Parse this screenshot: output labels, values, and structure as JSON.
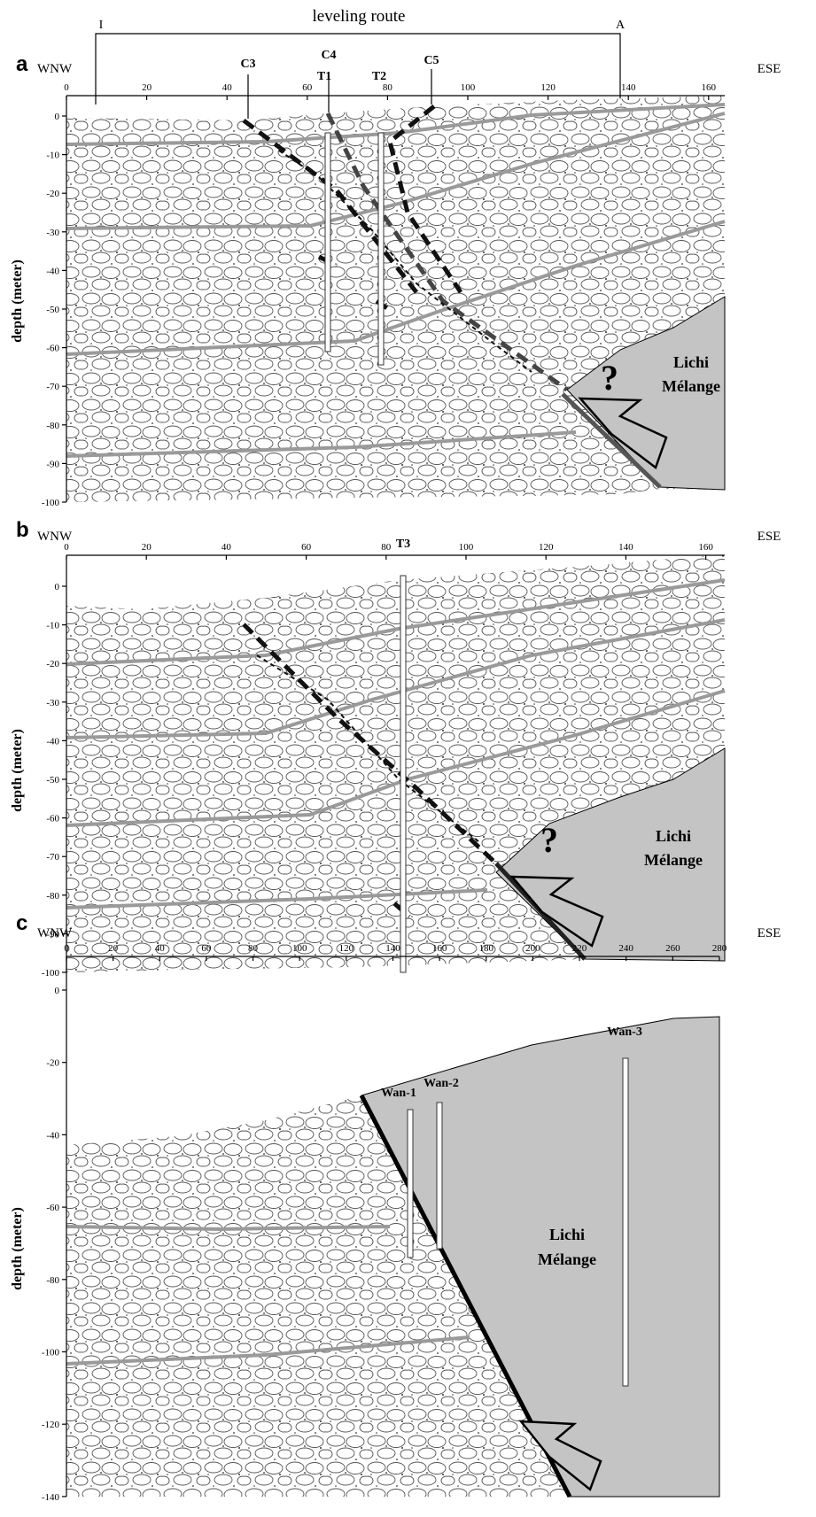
{
  "header": {
    "route_label": "leveling route",
    "route_start": "I",
    "route_end": "A"
  },
  "panels": [
    {
      "label": "a",
      "left": "WNW",
      "right": "ESE",
      "y_label": "depth (meter)",
      "xticks": [
        0,
        20,
        40,
        60,
        80,
        100,
        120,
        140,
        160
      ],
      "yticks": [
        0,
        -10,
        -20,
        -30,
        -40,
        -50,
        -60,
        -70,
        -80,
        -90,
        -100
      ],
      "annotations": [
        "C3",
        "C4",
        "T1",
        "T2",
        "C5"
      ],
      "unknown": "?",
      "unit": [
        "Lichi",
        "Mélange"
      ]
    },
    {
      "label": "b",
      "left": "WNW",
      "right": "ESE",
      "y_label": "depth (meter)",
      "xticks": [
        0,
        20,
        40,
        60,
        80,
        100,
        120,
        140,
        160
      ],
      "yticks": [
        0,
        -10,
        -20,
        -30,
        -40,
        -50,
        -60,
        -70,
        -80,
        -90,
        -100
      ],
      "annotations": [
        "T3"
      ],
      "unknown": "?",
      "unit": [
        "Lichi",
        "Mélange"
      ]
    },
    {
      "label": "c",
      "left": "WNW",
      "right": "ESE",
      "y_label": "depth (meter)",
      "xticks": [
        0,
        20,
        40,
        60,
        80,
        100,
        120,
        140,
        160,
        180,
        200,
        220,
        240,
        260,
        280
      ],
      "yticks": [
        0,
        -20,
        -40,
        -60,
        -80,
        -100,
        -120,
        -140
      ],
      "annotations": [
        "Wan-1",
        "Wan-2",
        "Wan-3"
      ],
      "unit": [
        "Lichi",
        "Mélange"
      ]
    }
  ]
}
